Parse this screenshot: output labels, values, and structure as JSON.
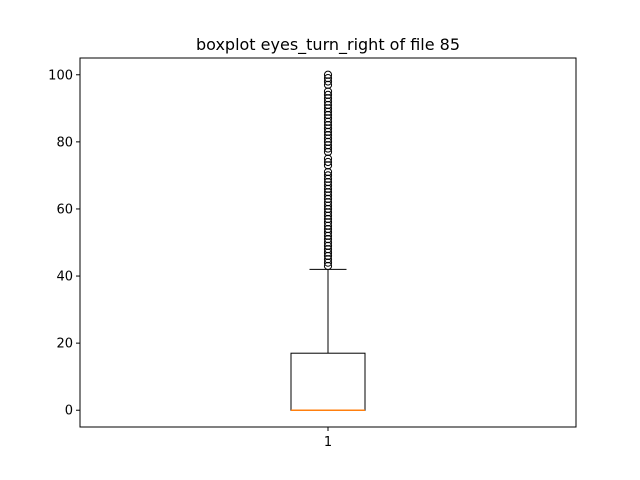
{
  "chart_data": {
    "type": "boxplot",
    "title": "boxplot eyes_turn_right of file 85",
    "xlabel": "",
    "ylabel": "",
    "categories": [
      "1"
    ],
    "ylim": [
      -5,
      105
    ],
    "yticks": [
      0,
      20,
      40,
      60,
      80,
      100
    ],
    "grid": false,
    "box": {
      "whisker_low": 0,
      "q1": 0,
      "median": 0,
      "q3": 17,
      "whisker_high": 42
    },
    "outliers": [
      43,
      44,
      45,
      46,
      47,
      48,
      49,
      50,
      51,
      52,
      53,
      54,
      55,
      56,
      57,
      58,
      59,
      60,
      61,
      62,
      63,
      64,
      65,
      66,
      67,
      68,
      69,
      70,
      71,
      73,
      74,
      75,
      77,
      78,
      79,
      80,
      81,
      82,
      83,
      84,
      85,
      86,
      87,
      88,
      89,
      90,
      91,
      92,
      93,
      94,
      95,
      97,
      98,
      99,
      100
    ],
    "colors": {
      "box": "#000000",
      "median": "#ff7f0e",
      "outlier_edge": "#000000"
    }
  }
}
